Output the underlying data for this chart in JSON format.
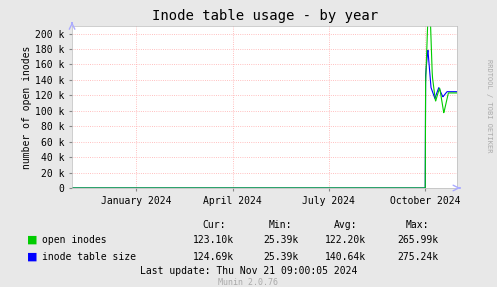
{
  "title": "Inode table usage - by year",
  "ylabel": "number of open inodes",
  "bg_color": "#e8e8e8",
  "plot_bg_color": "#ffffff",
  "grid_color": "#ffaaaa",
  "ylim": [
    0,
    210000
  ],
  "yticks": [
    0,
    20000,
    40000,
    60000,
    80000,
    100000,
    120000,
    140000,
    160000,
    180000,
    200000
  ],
  "ytick_labels": [
    "0",
    "20 k",
    "40 k",
    "60 k",
    "80 k",
    "100 k",
    "120 k",
    "140 k",
    "160 k",
    "180 k",
    "200 k"
  ],
  "xtick_labels": [
    "January 2024",
    "April 2024",
    "July 2024",
    "October 2024"
  ],
  "right_label": "RRDTOOL / TOBI OETIKER",
  "open_inodes_color": "#00cc00",
  "inode_table_color": "#0000ff",
  "legend": [
    {
      "label": "open inodes",
      "color": "#00cc00"
    },
    {
      "label": "inode table size",
      "color": "#0000ff"
    }
  ],
  "stats_header": [
    "Cur:",
    "Min:",
    "Avg:",
    "Max:"
  ],
  "stats_open_inodes": [
    "123.10k",
    "25.39k",
    "122.20k",
    "265.99k"
  ],
  "stats_inode_table": [
    "124.69k",
    "25.39k",
    "140.64k",
    "275.24k"
  ],
  "last_update": "Last update: Thu Nov 21 09:00:05 2024",
  "munin_version": "Munin 2.0.76",
  "arrow_color": "#aaaaff"
}
